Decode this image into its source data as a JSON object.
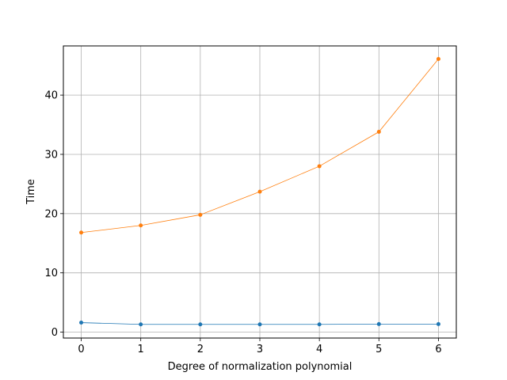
{
  "chart_data": {
    "type": "line",
    "title": "",
    "xlabel": "Degree of normalization polynomial",
    "ylabel": "Time",
    "x": [
      0,
      1,
      2,
      3,
      4,
      5,
      6
    ],
    "xticks": [
      "0",
      "1",
      "2",
      "3",
      "4",
      "5",
      "6"
    ],
    "yticks": [
      "0",
      "10",
      "20",
      "30",
      "40"
    ],
    "xlim": [
      -0.3,
      6.3
    ],
    "ylim": [
      -1.0,
      48.3
    ],
    "grid": true,
    "marker": "circle",
    "series": [
      {
        "color": "#1f77b4",
        "values": [
          1.6,
          1.3,
          1.3,
          1.3,
          1.3,
          1.35,
          1.35
        ]
      },
      {
        "color": "#ff7f0e",
        "values": [
          16.8,
          18.0,
          19.8,
          23.7,
          28.0,
          33.8,
          46.1
        ]
      }
    ]
  }
}
